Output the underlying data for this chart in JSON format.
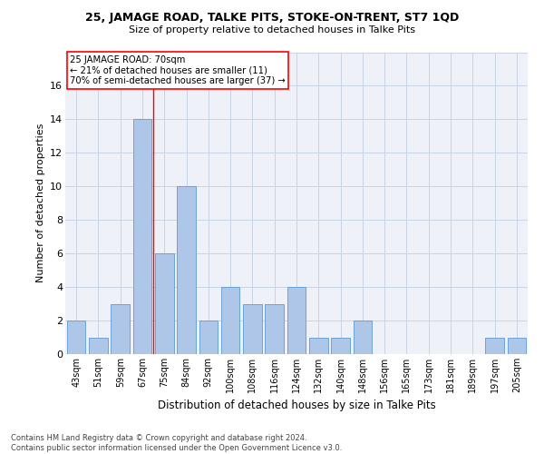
{
  "title1": "25, JAMAGE ROAD, TALKE PITS, STOKE-ON-TRENT, ST7 1QD",
  "title2": "Size of property relative to detached houses in Talke Pits",
  "xlabel": "Distribution of detached houses by size in Talke Pits",
  "ylabel": "Number of detached properties",
  "categories": [
    "43sqm",
    "51sqm",
    "59sqm",
    "67sqm",
    "75sqm",
    "84sqm",
    "92sqm",
    "100sqm",
    "108sqm",
    "116sqm",
    "124sqm",
    "132sqm",
    "140sqm",
    "148sqm",
    "156sqm",
    "165sqm",
    "173sqm",
    "181sqm",
    "189sqm",
    "197sqm",
    "205sqm"
  ],
  "values": [
    2,
    1,
    3,
    14,
    6,
    10,
    2,
    4,
    3,
    3,
    4,
    1,
    1,
    2,
    0,
    0,
    0,
    0,
    0,
    1,
    1
  ],
  "bar_color": "#aec6e8",
  "bar_edge_color": "#5b9bd5",
  "vline_x": 3.5,
  "vline_color": "red",
  "annotation_line1": "25 JAMAGE ROAD: 70sqm",
  "annotation_line2": "← 21% of detached houses are smaller (11)",
  "annotation_line3": "70% of semi-detached houses are larger (37) →",
  "annotation_box_color": "white",
  "annotation_box_edge_color": "red",
  "ylim": [
    0,
    18
  ],
  "yticks": [
    0,
    2,
    4,
    6,
    8,
    10,
    12,
    14,
    16,
    18
  ],
  "bg_color": "#eef2f8",
  "grid_color": "#c8d4e8",
  "footnote": "Contains HM Land Registry data © Crown copyright and database right 2024.\nContains public sector information licensed under the Open Government Licence v3.0."
}
